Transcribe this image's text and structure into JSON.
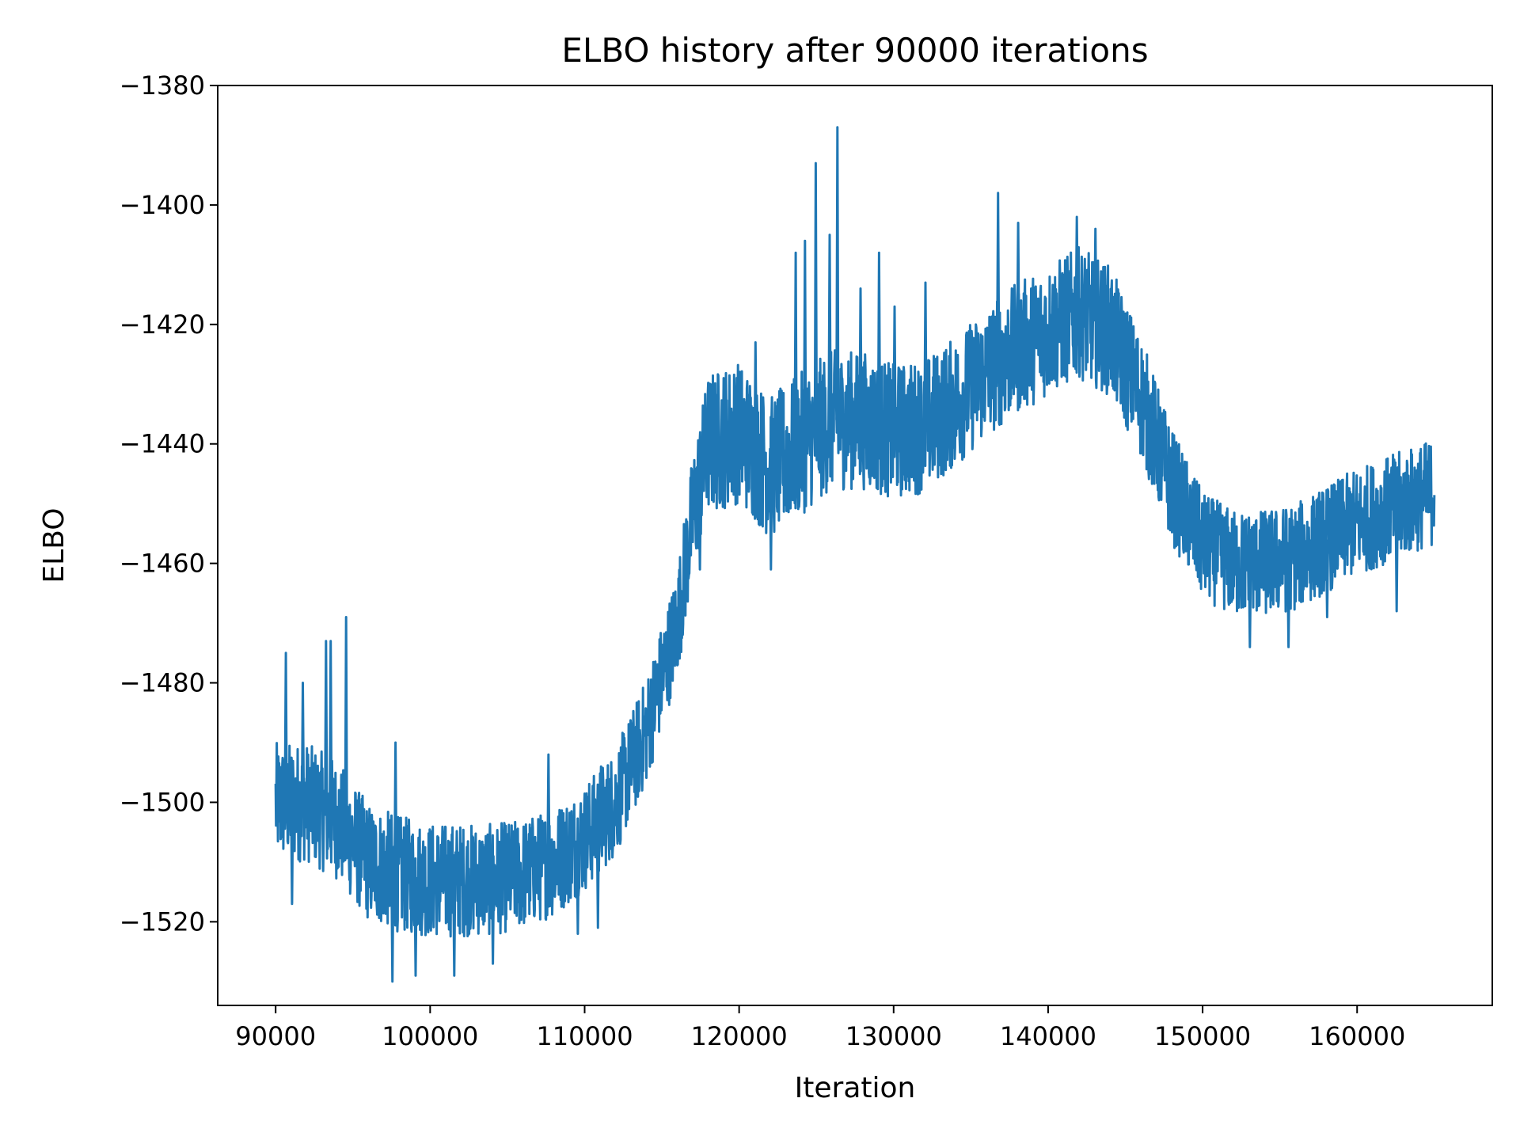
{
  "chart_data": {
    "type": "line",
    "title": "ELBO history after 90000 iterations",
    "xlabel": "Iteration",
    "ylabel": "ELBO",
    "xlim": [
      86250,
      168750
    ],
    "ylim": [
      -1534,
      -1380
    ],
    "xticks": [
      90000,
      100000,
      110000,
      120000,
      130000,
      140000,
      150000,
      160000
    ],
    "xtick_labels": [
      "90000",
      "100000",
      "110000",
      "120000",
      "130000",
      "140000",
      "150000",
      "160000"
    ],
    "yticks": [
      -1520,
      -1500,
      -1480,
      -1460,
      -1440,
      -1420,
      -1400,
      -1380
    ],
    "ytick_labels": [
      "−1520",
      "−1500",
      "−1480",
      "−1460",
      "−1440",
      "−1420",
      "−1400",
      "−1380"
    ],
    "grid": false,
    "legend": "none",
    "series": [
      {
        "name": "ELBO",
        "color": "#1f77b4",
        "x_start": 90000,
        "x_end": 165000,
        "trend": {
          "x": [
            90000,
            92000,
            94000,
            96000,
            98000,
            100000,
            102000,
            104000,
            106000,
            108000,
            110000,
            112000,
            114000,
            116000,
            117000,
            118000,
            120000,
            122000,
            124000,
            126000,
            128000,
            130000,
            132000,
            134000,
            136000,
            138000,
            140000,
            142000,
            144000,
            146000,
            148000,
            150000,
            152000,
            154000,
            156000,
            158000,
            160000,
            162000,
            164000,
            165000
          ],
          "y": [
            -1500,
            -1500,
            -1503,
            -1510,
            -1512,
            -1513,
            -1513,
            -1513,
            -1512,
            -1510,
            -1506,
            -1500,
            -1488,
            -1470,
            -1452,
            -1440,
            -1438,
            -1444,
            -1440,
            -1436,
            -1436,
            -1438,
            -1437,
            -1433,
            -1428,
            -1424,
            -1421,
            -1418,
            -1421,
            -1432,
            -1447,
            -1457,
            -1460,
            -1460,
            -1459,
            -1456,
            -1453,
            -1451,
            -1449,
            -1448
          ]
        },
        "noise_amplitude": [
          [
            90000,
            10
          ],
          [
            95000,
            10
          ],
          [
            110000,
            9
          ],
          [
            116000,
            9
          ],
          [
            118000,
            12
          ],
          [
            124000,
            12
          ],
          [
            134000,
            11
          ],
          [
            144000,
            11
          ],
          [
            150000,
            9
          ],
          [
            165000,
            9
          ]
        ],
        "spikes": [
          [
            90600,
            -1475
          ],
          [
            91700,
            -1480
          ],
          [
            93200,
            -1473
          ],
          [
            93500,
            -1473
          ],
          [
            94500,
            -1469
          ],
          [
            97700,
            -1490
          ],
          [
            107600,
            -1492
          ],
          [
            111000,
            -1494
          ],
          [
            123600,
            -1408
          ],
          [
            124200,
            -1406
          ],
          [
            124900,
            -1393
          ],
          [
            125800,
            -1405
          ],
          [
            126300,
            -1387
          ],
          [
            127800,
            -1414
          ],
          [
            129000,
            -1408
          ],
          [
            130000,
            -1417
          ],
          [
            136700,
            -1398
          ],
          [
            138000,
            -1403
          ],
          [
            141800,
            -1402
          ],
          [
            143000,
            -1404
          ],
          [
            121000,
            -1423
          ],
          [
            132000,
            -1413
          ]
        ],
        "dips": [
          [
            91000,
            -1517
          ],
          [
            97500,
            -1530
          ],
          [
            99000,
            -1529
          ],
          [
            101500,
            -1529
          ],
          [
            104000,
            -1527
          ],
          [
            109500,
            -1522
          ],
          [
            110800,
            -1521
          ],
          [
            117400,
            -1461
          ],
          [
            122000,
            -1461
          ],
          [
            145000,
            -1437
          ],
          [
            153000,
            -1474
          ],
          [
            155500,
            -1474
          ],
          [
            158000,
            -1469
          ],
          [
            162500,
            -1468
          ]
        ]
      }
    ]
  }
}
